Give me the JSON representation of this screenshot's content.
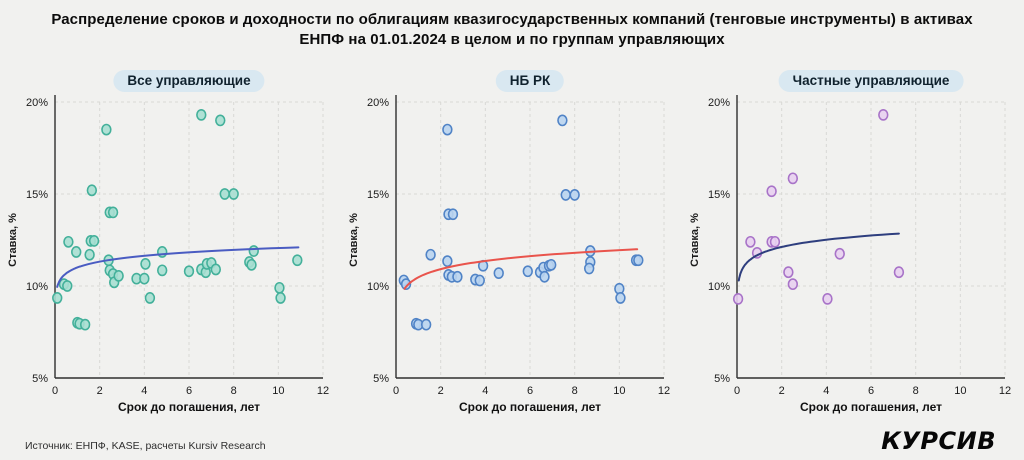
{
  "header": {
    "title_line1": "Распределение сроков и доходности по облигациям квазигосударственных компаний (тенговые инструменты) в активах",
    "title_line2": "ЕНПФ на 01.01.2024 в целом и по группам управляющих"
  },
  "colors": {
    "background": "#f1f1ef",
    "pill_background": "#d9e8f1",
    "grid": "#d9d9d5",
    "axis": "#2f2f2f",
    "tick_text": "#1b1b1b"
  },
  "footer": {
    "source": "Источник: ЕНПФ, KASE, расчеты Kursiv Research",
    "logo": "КУРСИВ"
  },
  "chart_data": [
    {
      "type": "scatter",
      "title": "Все управляющие",
      "xlabel": "Срок до погашения, лет",
      "ylabel": "Ставка, %",
      "xlim": [
        0,
        12
      ],
      "ylim": [
        5,
        20
      ],
      "xticks": [
        {
          "v": 0,
          "label": "0"
        },
        {
          "v": 2,
          "label": "2"
        },
        {
          "v": 4,
          "label": "4"
        },
        {
          "v": 6,
          "label": "6"
        },
        {
          "v": 8,
          "label": "8"
        },
        {
          "v": 10,
          "label": "10"
        },
        {
          "v": 12,
          "label": "12"
        }
      ],
      "yticks": [
        {
          "v": 5,
          "label": "5%"
        },
        {
          "v": 10,
          "label": "10%"
        },
        {
          "v": 15,
          "label": "15%"
        },
        {
          "v": 20,
          "label": "20%"
        }
      ],
      "point_fill": "#a7dfd1",
      "point_stroke": "#43b09a",
      "trend": {
        "color": "#4a5cc2",
        "x_start": 0.1,
        "y_start": 9.95,
        "x_end": 10.9,
        "y_end": 12.1
      },
      "points": [
        [
          0.1,
          9.35
        ],
        [
          0.4,
          10.1
        ],
        [
          0.55,
          10.0
        ],
        [
          0.6,
          12.4
        ],
        [
          0.95,
          11.85
        ],
        [
          1.0,
          8.0
        ],
        [
          1.1,
          7.95
        ],
        [
          1.35,
          7.9
        ],
        [
          1.55,
          11.7
        ],
        [
          1.6,
          12.45
        ],
        [
          1.75,
          12.45
        ],
        [
          1.65,
          15.2
        ],
        [
          2.3,
          18.5
        ],
        [
          2.45,
          14.0
        ],
        [
          2.6,
          14.0
        ],
        [
          2.4,
          11.4
        ],
        [
          2.45,
          10.85
        ],
        [
          2.6,
          10.65
        ],
        [
          2.65,
          10.2
        ],
        [
          2.85,
          10.55
        ],
        [
          3.65,
          10.4
        ],
        [
          4.0,
          10.4
        ],
        [
          4.05,
          11.2
        ],
        [
          4.25,
          9.35
        ],
        [
          4.8,
          11.85
        ],
        [
          4.8,
          10.85
        ],
        [
          6.0,
          10.8
        ],
        [
          6.55,
          19.3
        ],
        [
          6.55,
          10.9
        ],
        [
          6.75,
          10.75
        ],
        [
          6.8,
          11.2
        ],
        [
          7.0,
          11.25
        ],
        [
          7.2,
          10.9
        ],
        [
          7.4,
          19.0
        ],
        [
          7.6,
          15.0
        ],
        [
          8.0,
          15.0
        ],
        [
          8.7,
          11.3
        ],
        [
          8.8,
          11.15
        ],
        [
          8.9,
          11.9
        ],
        [
          10.05,
          9.9
        ],
        [
          10.1,
          9.35
        ],
        [
          10.85,
          11.4
        ]
      ]
    },
    {
      "type": "scatter",
      "title": "НБ РК",
      "xlabel": "Срок до погашения, лет",
      "ylabel": "Ставка, %",
      "xlim": [
        0,
        12
      ],
      "ylim": [
        5,
        20
      ],
      "xticks": [
        {
          "v": 0,
          "label": "0"
        },
        {
          "v": 2,
          "label": "2"
        },
        {
          "v": 4,
          "label": "4"
        },
        {
          "v": 6,
          "label": "6"
        },
        {
          "v": 8,
          "label": "8"
        },
        {
          "v": 10,
          "label": "10"
        },
        {
          "v": 12,
          "label": "12"
        }
      ],
      "yticks": [
        {
          "v": 5,
          "label": "5%"
        },
        {
          "v": 10,
          "label": "10%"
        },
        {
          "v": 15,
          "label": "15%"
        },
        {
          "v": 20,
          "label": "20%"
        }
      ],
      "point_fill": "#b9d4f0",
      "point_stroke": "#5083c6",
      "trend": {
        "color": "#e9544c",
        "x_start": 0.38,
        "y_start": 9.85,
        "x_end": 10.8,
        "y_end": 12.0
      },
      "points": [
        [
          0.35,
          10.3
        ],
        [
          0.45,
          10.1
        ],
        [
          0.9,
          7.95
        ],
        [
          1.0,
          7.9
        ],
        [
          1.35,
          7.9
        ],
        [
          1.55,
          11.7
        ],
        [
          2.3,
          18.5
        ],
        [
          2.35,
          13.9
        ],
        [
          2.55,
          13.9
        ],
        [
          2.3,
          11.35
        ],
        [
          2.35,
          10.6
        ],
        [
          2.5,
          10.5
        ],
        [
          2.75,
          10.5
        ],
        [
          3.55,
          10.35
        ],
        [
          3.75,
          10.3
        ],
        [
          3.9,
          11.1
        ],
        [
          4.6,
          10.7
        ],
        [
          5.9,
          10.8
        ],
        [
          6.45,
          10.75
        ],
        [
          6.6,
          11.0
        ],
        [
          6.65,
          10.5
        ],
        [
          6.85,
          11.1
        ],
        [
          6.95,
          11.15
        ],
        [
          7.45,
          19.0
        ],
        [
          7.6,
          14.95
        ],
        [
          8.0,
          14.95
        ],
        [
          8.7,
          11.9
        ],
        [
          8.7,
          11.3
        ],
        [
          8.65,
          10.95
        ],
        [
          10.0,
          9.85
        ],
        [
          10.05,
          9.35
        ],
        [
          10.75,
          11.4
        ],
        [
          10.85,
          11.4
        ]
      ]
    },
    {
      "type": "scatter",
      "title": "Частные управляющие",
      "xlabel": "Срок до погашения, лет",
      "ylabel": "Ставка, %",
      "xlim": [
        0,
        12
      ],
      "ylim": [
        5,
        20
      ],
      "xticks": [
        {
          "v": 0,
          "label": "0"
        },
        {
          "v": 2,
          "label": "2"
        },
        {
          "v": 4,
          "label": "4"
        },
        {
          "v": 6,
          "label": "6"
        },
        {
          "v": 8,
          "label": "8"
        },
        {
          "v": 10,
          "label": "10"
        },
        {
          "v": 12,
          "label": "12"
        }
      ],
      "yticks": [
        {
          "v": 5,
          "label": "5%"
        },
        {
          "v": 10,
          "label": "10%"
        },
        {
          "v": 15,
          "label": "15%"
        },
        {
          "v": 20,
          "label": "20%"
        }
      ],
      "point_fill": "#e8d0ef",
      "point_stroke": "#a873c8",
      "trend": {
        "color": "#2e3e7e",
        "x_start": 0.08,
        "y_start": 10.3,
        "x_end": 7.25,
        "y_end": 12.85
      },
      "points": [
        [
          0.05,
          9.3
        ],
        [
          0.6,
          12.4
        ],
        [
          0.9,
          11.8
        ],
        [
          1.55,
          15.15
        ],
        [
          1.55,
          12.4
        ],
        [
          1.7,
          12.4
        ],
        [
          2.3,
          10.75
        ],
        [
          2.5,
          15.85
        ],
        [
          2.5,
          10.1
        ],
        [
          4.05,
          9.3
        ],
        [
          4.6,
          11.75
        ],
        [
          6.55,
          19.3
        ],
        [
          7.25,
          10.75
        ]
      ]
    }
  ]
}
